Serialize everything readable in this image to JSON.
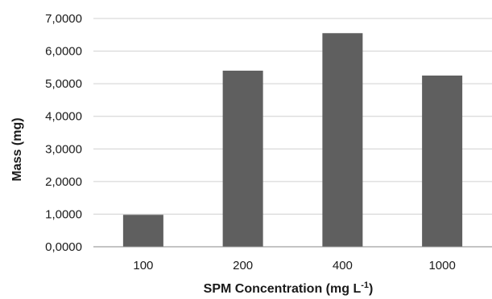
{
  "chart_data": {
    "type": "bar",
    "title": "",
    "xlabel": "SPM Concentration (mg L",
    "xlabel_superscript": "-1",
    "xlabel_suffix": ")",
    "ylabel": "Mass (mg)",
    "categories": [
      "100",
      "200",
      "400",
      "1000"
    ],
    "values": [
      0.98,
      5.4,
      6.55,
      5.25
    ],
    "ylim": [
      0,
      7
    ],
    "yticks": [
      0,
      1,
      2,
      3,
      4,
      5,
      6,
      7
    ],
    "ytick_labels": [
      "0,0000",
      "1,0000",
      "2,0000",
      "3,0000",
      "4,0000",
      "5,0000",
      "6,0000",
      "7,0000"
    ],
    "grid": true,
    "legend": "none",
    "bar_color": "#5f5f5f"
  }
}
